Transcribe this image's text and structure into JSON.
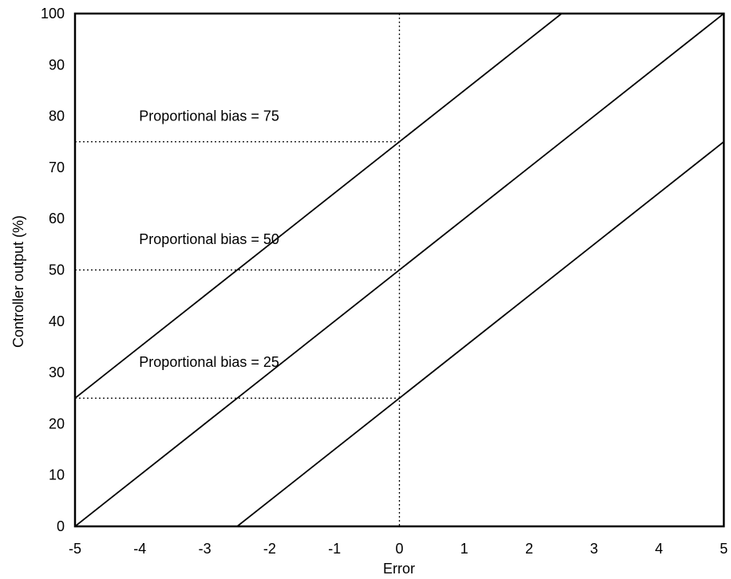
{
  "chart_data": {
    "type": "line",
    "title": "",
    "xlabel": "Error",
    "ylabel": "Controller output (%)",
    "xlim": [
      -5,
      5
    ],
    "ylim": [
      0,
      100
    ],
    "grid": false,
    "x_ticks": [
      "-5",
      "-4",
      "-3",
      "-2",
      "-1",
      "0",
      "1",
      "2",
      "3",
      "4",
      "5"
    ],
    "y_ticks": [
      "0",
      "10",
      "20",
      "30",
      "40",
      "50",
      "60",
      "70",
      "80",
      "90",
      "100"
    ],
    "series": [
      {
        "x": [
          -5,
          2.5
        ],
        "y": [
          25,
          100
        ]
      },
      {
        "x": [
          -5,
          5
        ],
        "y": [
          0,
          100
        ]
      },
      {
        "x": [
          -2.5,
          5
        ],
        "y": [
          0,
          75
        ]
      }
    ],
    "reference_lines": [
      {
        "orientation": "vertical",
        "x": 0,
        "style": "dotted"
      },
      {
        "orientation": "horizontal",
        "y": 75,
        "x_range": [
          -5,
          0
        ],
        "style": "dotted"
      },
      {
        "orientation": "horizontal",
        "y": 50,
        "x_range": [
          -5,
          0
        ],
        "style": "dotted"
      },
      {
        "orientation": "horizontal",
        "y": 25,
        "x_range": [
          -5,
          0
        ],
        "style": "dotted"
      }
    ],
    "annotations": [
      {
        "text": "Proportional bias = 75",
        "x": -4,
        "y": 80
      },
      {
        "text": "Proportional bias = 50",
        "x": -4,
        "y": 56
      },
      {
        "text": "Proportional bias = 25",
        "x": -4,
        "y": 32
      }
    ],
    "line_color": "#000000"
  }
}
